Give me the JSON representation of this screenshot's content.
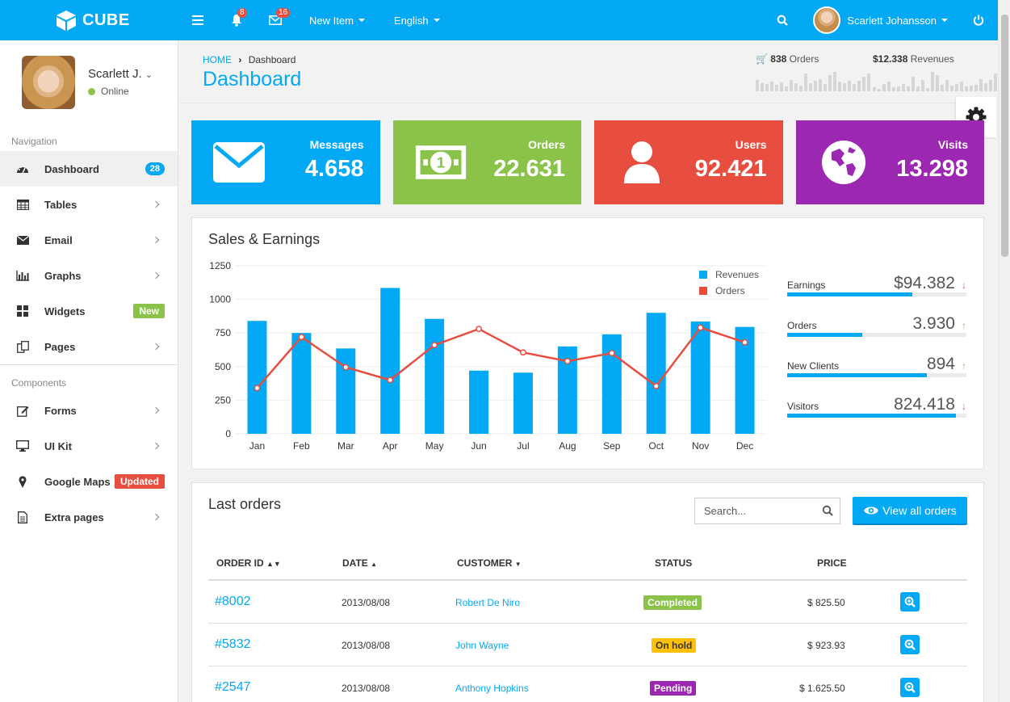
{
  "topbar": {
    "logo_text": "CUBE",
    "notifications_count": "8",
    "messages_count": "16",
    "new_item_label": "New Item",
    "language_label": "English",
    "user_name": "Scarlett Johansson"
  },
  "sidebar": {
    "profile_name": "Scarlett J.",
    "profile_status": "Online",
    "nav_section": "Navigation",
    "components_section": "Components",
    "items": [
      {
        "label": "Dashboard",
        "badge": "28"
      },
      {
        "label": "Tables"
      },
      {
        "label": "Email"
      },
      {
        "label": "Graphs"
      },
      {
        "label": "Widgets",
        "badge": "New"
      },
      {
        "label": "Pages"
      }
    ],
    "component_items": [
      {
        "label": "Forms"
      },
      {
        "label": "UI Kit"
      },
      {
        "label": "Google Maps",
        "badge": "Updated"
      },
      {
        "label": "Extra pages"
      }
    ]
  },
  "header": {
    "breadcrumb_home": "HOME",
    "breadcrumb_current": "Dashboard",
    "title": "Dashboard",
    "orders_stat_value": "838",
    "orders_stat_label": "Orders",
    "revenue_stat_value": "$12.338",
    "revenue_stat_label": "Revenues",
    "orders_sparkline": [
      14,
      10,
      9,
      12,
      8,
      11,
      6,
      14,
      10,
      7,
      22,
      10,
      13,
      15,
      9,
      20,
      24,
      12,
      10,
      13,
      9,
      13,
      18,
      22
    ],
    "revenue_sparkline": [
      5,
      3,
      9,
      12,
      5,
      6,
      9,
      6,
      18,
      6,
      14,
      4,
      24,
      20,
      8,
      14,
      7,
      9,
      12,
      6,
      7,
      8,
      15,
      10,
      14,
      22
    ]
  },
  "boxes": [
    {
      "title": "Messages",
      "value": "4.658",
      "color": "#03a9f4",
      "icon": "envelope-icon"
    },
    {
      "title": "Orders",
      "value": "22.631",
      "color": "#8bc34a",
      "icon": "money-icon"
    },
    {
      "title": "Users",
      "value": "92.421",
      "color": "#e84e40",
      "icon": "user-icon"
    },
    {
      "title": "Visits",
      "value": "13.298",
      "color": "#9c27b0",
      "icon": "globe-icon"
    }
  ],
  "sales": {
    "title": "Sales & Earnings",
    "stats": [
      {
        "label": "Earnings",
        "value": "$94.382",
        "trend": "down",
        "progress": 0.7
      },
      {
        "label": "Orders",
        "value": "3.930",
        "trend": "up",
        "progress": 0.42
      },
      {
        "label": "New Clients",
        "value": "894",
        "trend": "up",
        "progress": 0.78
      },
      {
        "label": "Visitors",
        "value": "824.418",
        "trend": "down",
        "progress": 0.94
      }
    ]
  },
  "chart_data": {
    "type": "bar",
    "title": "Sales & Earnings",
    "categories": [
      "Jan",
      "Feb",
      "Mar",
      "Apr",
      "May",
      "Jun",
      "Jul",
      "Aug",
      "Sep",
      "Oct",
      "Nov",
      "Dec"
    ],
    "series": [
      {
        "name": "Revenues",
        "type": "bar",
        "color": "#03a9f4",
        "values": [
          840,
          750,
          635,
          1085,
          855,
          470,
          455,
          650,
          740,
          900,
          835,
          795
        ]
      },
      {
        "name": "Orders",
        "type": "line",
        "color": "#e84e40",
        "values": [
          340,
          720,
          495,
          400,
          660,
          780,
          605,
          540,
          600,
          355,
          790,
          680
        ]
      }
    ],
    "yticks": [
      0,
      250,
      500,
      750,
      1000,
      1250
    ],
    "ylim": [
      0,
      1250
    ],
    "legend": "top-right",
    "grid": true
  },
  "orders": {
    "title": "Last orders",
    "search_placeholder": "Search...",
    "view_all_label": "View all orders",
    "columns": [
      "ORDER ID",
      "DATE",
      "CUSTOMER",
      "STATUS",
      "PRICE"
    ],
    "rows": [
      {
        "id": "#8002",
        "date": "2013/08/08",
        "customer": "Robert De Niro",
        "status": "Completed",
        "status_color": "#8bc34a",
        "price": "$ 825.50"
      },
      {
        "id": "#5832",
        "date": "2013/08/08",
        "customer": "John Wayne",
        "status": "On hold",
        "status_color": "#ffc107",
        "price": "$ 923.93"
      },
      {
        "id": "#2547",
        "date": "2013/08/08",
        "customer": "Anthony Hopkins",
        "status": "Pending",
        "status_color": "#9c27b0",
        "price": "$ 1.625.50"
      }
    ]
  }
}
